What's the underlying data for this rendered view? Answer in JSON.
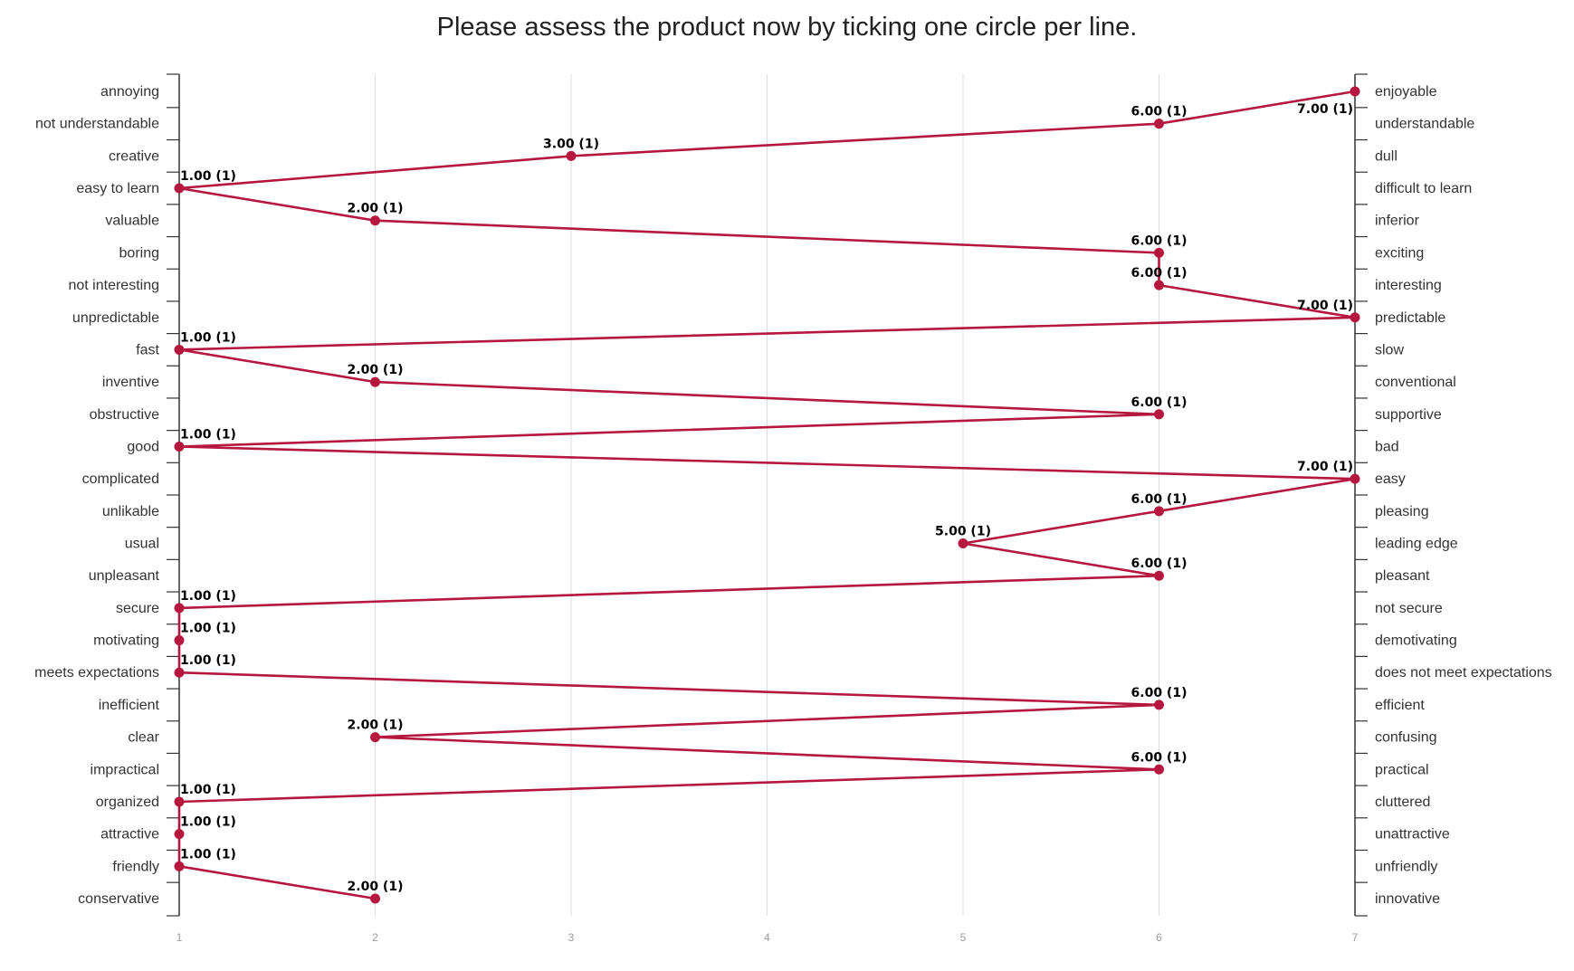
{
  "chart_data": {
    "type": "line",
    "title": "Please assess the product now by ticking one circle per line.",
    "x_ticks": [
      "1",
      "2",
      "3",
      "4",
      "5",
      "6",
      "7"
    ],
    "xlim": [
      1,
      7
    ],
    "grid": true,
    "series_color": "#b5173f",
    "grid_color": "#dddddd",
    "axis_color": "#333333",
    "items": [
      {
        "left": "annoying",
        "right": "enjoyable",
        "value": 7,
        "label": "7.00 (1)"
      },
      {
        "left": "not understandable",
        "right": "understandable",
        "value": 6,
        "label": "6.00 (1)"
      },
      {
        "left": "creative",
        "right": "dull",
        "value": 3,
        "label": "3.00 (1)"
      },
      {
        "left": "easy to learn",
        "right": "difficult to learn",
        "value": 1,
        "label": "1.00 (1)"
      },
      {
        "left": "valuable",
        "right": "inferior",
        "value": 2,
        "label": "2.00 (1)"
      },
      {
        "left": "boring",
        "right": "exciting",
        "value": 6,
        "label": "6.00 (1)"
      },
      {
        "left": "not interesting",
        "right": "interesting",
        "value": 6,
        "label": "6.00 (1)"
      },
      {
        "left": "unpredictable",
        "right": "predictable",
        "value": 7,
        "label": "7.00 (1)"
      },
      {
        "left": "fast",
        "right": "slow",
        "value": 1,
        "label": "1.00 (1)"
      },
      {
        "left": "inventive",
        "right": "conventional",
        "value": 2,
        "label": "2.00 (1)"
      },
      {
        "left": "obstructive",
        "right": "supportive",
        "value": 6,
        "label": "6.00 (1)"
      },
      {
        "left": "good",
        "right": "bad",
        "value": 1,
        "label": "1.00 (1)"
      },
      {
        "left": "complicated",
        "right": "easy",
        "value": 7,
        "label": "7.00 (1)"
      },
      {
        "left": "unlikable",
        "right": "pleasing",
        "value": 6,
        "label": "6.00 (1)"
      },
      {
        "left": "usual",
        "right": "leading edge",
        "value": 5,
        "label": "5.00 (1)"
      },
      {
        "left": "unpleasant",
        "right": "pleasant",
        "value": 6,
        "label": "6.00 (1)"
      },
      {
        "left": "secure",
        "right": "not secure",
        "value": 1,
        "label": "1.00 (1)"
      },
      {
        "left": "motivating",
        "right": "demotivating",
        "value": 1,
        "label": "1.00 (1)"
      },
      {
        "left": "meets expectations",
        "right": "does not meet expectations",
        "value": 1,
        "label": "1.00 (1)"
      },
      {
        "left": "inefficient",
        "right": "efficient",
        "value": 6,
        "label": "6.00 (1)"
      },
      {
        "left": "clear",
        "right": "confusing",
        "value": 2,
        "label": "2.00 (1)"
      },
      {
        "left": "impractical",
        "right": "practical",
        "value": 6,
        "label": "6.00 (1)"
      },
      {
        "left": "organized",
        "right": "cluttered",
        "value": 1,
        "label": "1.00 (1)"
      },
      {
        "left": "attractive",
        "right": "unattractive",
        "value": 1,
        "label": "1.00 (1)"
      },
      {
        "left": "friendly",
        "right": "unfriendly",
        "value": 1,
        "label": "1.00 (1)"
      },
      {
        "left": "conservative",
        "right": "innovative",
        "value": 2,
        "label": "2.00 (1)"
      }
    ]
  }
}
